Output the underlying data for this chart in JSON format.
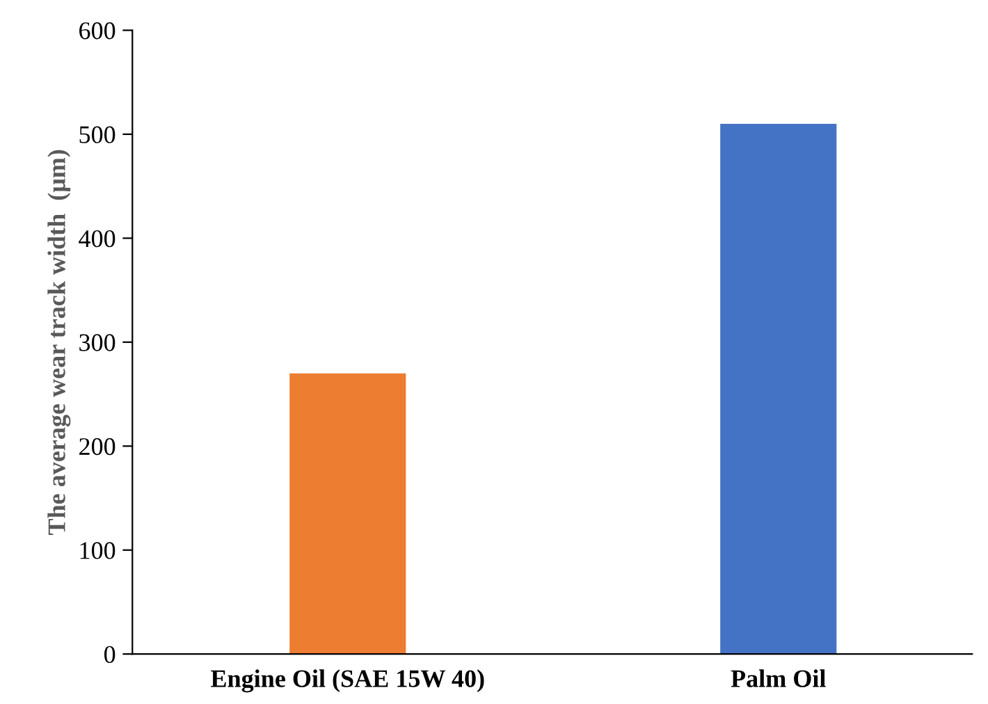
{
  "chart_data": {
    "type": "bar",
    "ylabel": "The average wear track width  (μm)",
    "categories": [
      "Engine Oil (SAE 15W 40)",
      "Palm Oil"
    ],
    "values": [
      270,
      510
    ],
    "colors": [
      "#ed7d31",
      "#4472c4"
    ],
    "ylim": [
      0,
      600
    ],
    "yticks": [
      0,
      100,
      200,
      300,
      400,
      500,
      600
    ],
    "grid": false,
    "legend": false
  }
}
